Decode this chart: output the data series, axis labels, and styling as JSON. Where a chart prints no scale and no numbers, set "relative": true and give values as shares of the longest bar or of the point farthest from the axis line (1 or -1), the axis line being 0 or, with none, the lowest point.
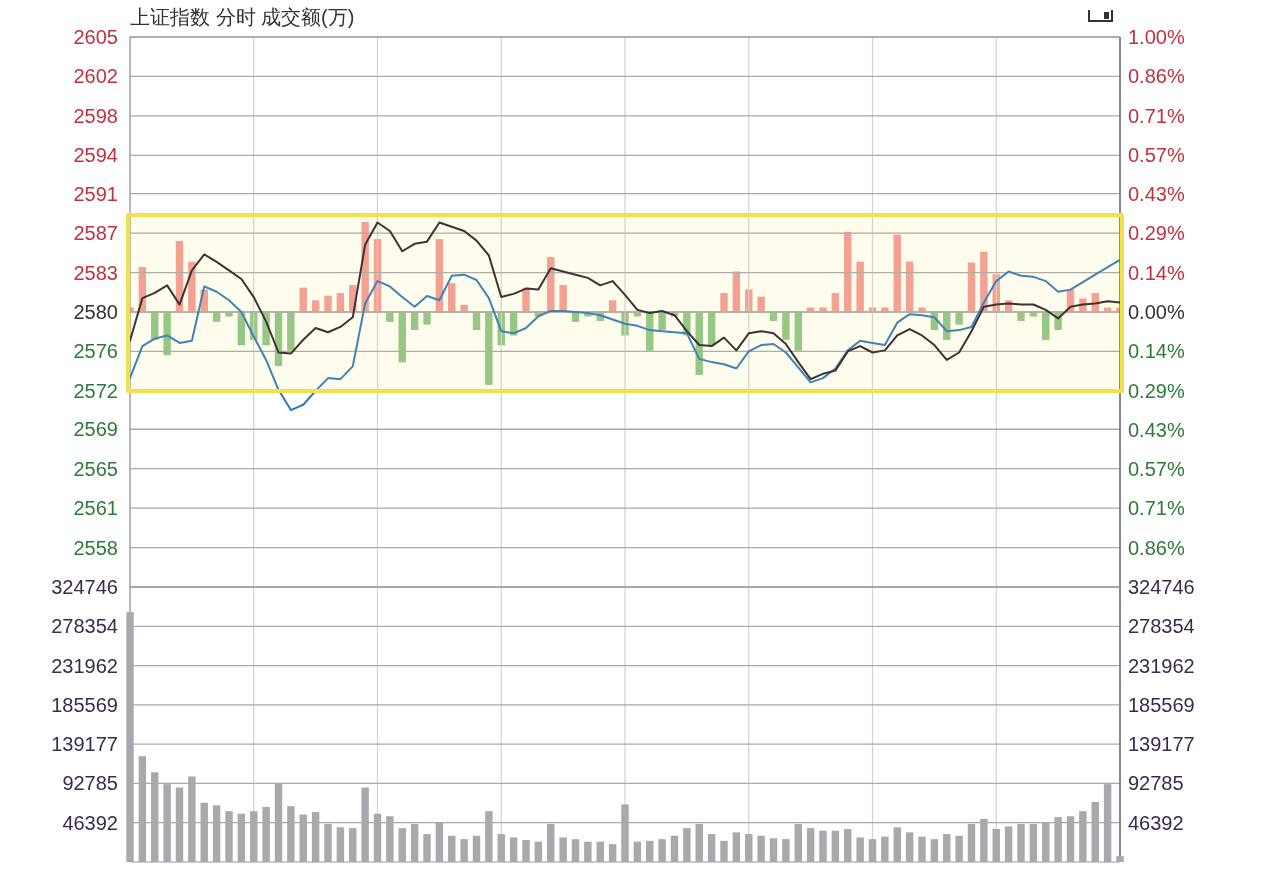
{
  "chart_data": [
    {
      "type": "line",
      "title": "上证指数  分时  成交额(万)",
      "categories": [
        null,
        null,
        null,
        null,
        null,
        null,
        null,
        null,
        null,
        null,
        null,
        null,
        null,
        null,
        null,
        null,
        null,
        null,
        null,
        null,
        null,
        null,
        null,
        null,
        null,
        null,
        null,
        null,
        null,
        null,
        null,
        null,
        null,
        null,
        null,
        null,
        null,
        null,
        null,
        null,
        null,
        null,
        null,
        null,
        null,
        null,
        null,
        null,
        null,
        null,
        null,
        null,
        null,
        null,
        null,
        null,
        null,
        null,
        null,
        null,
        null,
        null,
        null,
        null,
        null,
        null,
        null,
        null,
        null,
        null,
        null,
        null,
        null,
        null,
        null,
        null,
        null,
        null,
        null,
        null,
        null
      ],
      "ylim": [
        2553.9,
        2605.5
      ],
      "yticks": [
        {
          "value": 2605.5,
          "label": "2605"
        },
        {
          "value": 2601.8,
          "label": "2602"
        },
        {
          "value": 2598.1,
          "label": "2598"
        },
        {
          "value": 2594.4,
          "label": "2594"
        },
        {
          "value": 2590.8,
          "label": "2591"
        },
        {
          "value": 2587.1,
          "label": "2587"
        },
        {
          "value": 2583.4,
          "label": "2583"
        },
        {
          "value": 2579.7,
          "label": "2580"
        },
        {
          "value": 2576.0,
          "label": "2576"
        },
        {
          "value": 2572.3,
          "label": "2572"
        },
        {
          "value": 2568.7,
          "label": "2569"
        },
        {
          "value": 2565.0,
          "label": "2565"
        },
        {
          "value": 2561.3,
          "label": "2561"
        },
        {
          "value": 2557.6,
          "label": "2558"
        }
      ],
      "y2lim": [
        -1,
        1
      ],
      "y2ticks": [
        {
          "value": 1,
          "label": "1.00%"
        },
        {
          "value": 0.857,
          "label": "0.86%"
        },
        {
          "value": 0.714,
          "label": "0.71%"
        },
        {
          "value": 0.571,
          "label": "0.57%"
        },
        {
          "value": 0.429,
          "label": "0.43%"
        },
        {
          "value": 0.286,
          "label": "0.29%"
        },
        {
          "value": 0.143,
          "label": "0.14%"
        },
        {
          "value": 0,
          "label": "0.00%"
        },
        {
          "value": -0.143,
          "label": "0.14%"
        },
        {
          "value": -0.286,
          "label": "0.29%"
        },
        {
          "value": -0.429,
          "label": "0.43%"
        },
        {
          "value": -0.571,
          "label": "0.57%"
        },
        {
          "value": -0.714,
          "label": "0.71%"
        },
        {
          "value": -0.857,
          "label": "0.86%"
        }
      ],
      "tick_labels": "y",
      "grid": true,
      "bands": [
        {
          "axis": "y",
          "from": 2572.3,
          "to": 2588.8,
          "color": "#f3e14a"
        }
      ],
      "series": [
        {
          "color": "#2e78c0",
          "values": [
            2573.5,
            2576.5,
            2577.2,
            2577.5,
            2576.8,
            2577.0,
            2582.1,
            2581.6,
            2580.8,
            2579.7,
            2577.4,
            2575.2,
            2572.4,
            2570.5,
            2571.0,
            2572.3,
            2573.5,
            2573.4,
            2574.6,
            2580.5,
            2582.6,
            2582.1,
            2581.1,
            2580.2,
            2581.2,
            2580.8,
            2583.1,
            2583.2,
            2582.7,
            2581.0,
            2577.9,
            2577.7,
            2578.2,
            2579.3,
            2579.8,
            2579.8,
            2579.7,
            2579.6,
            2579.4,
            2579.0,
            2578.6,
            2578.4,
            2578.0,
            2577.9,
            2577.8,
            2577.7,
            2575.3,
            2575.0,
            2574.8,
            2574.4,
            2576.0,
            2576.6,
            2576.7,
            2575.9,
            2574.5,
            2573.1,
            2573.5,
            2574.4,
            2576.1,
            2577.0,
            2576.8,
            2576.6,
            2578.7,
            2579.5,
            2579.4,
            2579.2,
            2577.9,
            2578.0,
            2578.3,
            2580.6,
            2582.6,
            2583.5,
            2583.1,
            2583.0,
            2582.6,
            2581.6,
            2581.8,
            2582.5,
            2583.2,
            2583.9,
            2584.6
          ]
        },
        {
          "color": "#2a1f33",
          "values": [
            2577.0,
            2581.0,
            2581.5,
            2582.2,
            2580.4,
            2583.6,
            2585.1,
            2584.4,
            2583.6,
            2582.8,
            2581.1,
            2578.8,
            2575.9,
            2575.8,
            2577.1,
            2578.2,
            2577.8,
            2578.3,
            2579.2,
            2586.0,
            2588.1,
            2587.3,
            2585.4,
            2586.1,
            2586.3,
            2588.1,
            2587.7,
            2587.3,
            2586.4,
            2585.0,
            2581.1,
            2581.4,
            2581.9,
            2581.8,
            2583.8,
            2583.5,
            2583.2,
            2582.9,
            2582.2,
            2582.6,
            2581.3,
            2579.9,
            2579.6,
            2579.8,
            2579.4,
            2577.9,
            2576.6,
            2576.5,
            2577.3,
            2576.1,
            2577.7,
            2577.9,
            2577.7,
            2576.7,
            2575.0,
            2573.4,
            2573.9,
            2574.2,
            2576.0,
            2576.5,
            2575.9,
            2576.1,
            2577.5,
            2578.1,
            2577.5,
            2576.6,
            2575.2,
            2575.9,
            2577.9,
            2580.2,
            2580.4,
            2580.5,
            2580.4,
            2580.4,
            2579.9,
            2579.1,
            2580.2,
            2580.4,
            2580.5,
            2580.7,
            2580.6
          ]
        }
      ]
    },
    {
      "type": "bar",
      "relative": true,
      "tick_labels": false,
      "categories": [
        null,
        null,
        null,
        null,
        null,
        null,
        null,
        null,
        null,
        null,
        null,
        null,
        null,
        null,
        null,
        null,
        null,
        null,
        null,
        null,
        null,
        null,
        null,
        null,
        null,
        null,
        null,
        null,
        null,
        null,
        null,
        null,
        null,
        null,
        null,
        null,
        null,
        null,
        null,
        null,
        null,
        null,
        null,
        null,
        null,
        null,
        null,
        null,
        null,
        null,
        null,
        null,
        null,
        null,
        null,
        null,
        null,
        null,
        null,
        null,
        null,
        null,
        null,
        null,
        null,
        null,
        null,
        null,
        null,
        null,
        null,
        null,
        null,
        null,
        null,
        null,
        null,
        null,
        null,
        null,
        null
      ],
      "values": [
        0.05,
        0.5,
        -0.31,
        -0.48,
        0.79,
        0.56,
        0.25,
        -0.11,
        -0.05,
        -0.37,
        -0.31,
        -0.37,
        -0.6,
        -0.43,
        0.27,
        0.13,
        0.18,
        0.21,
        0.3,
        1,
        0.81,
        -0.11,
        -0.56,
        -0.2,
        -0.14,
        0.81,
        0.32,
        0.08,
        -0.2,
        -0.81,
        -0.37,
        -0.26,
        0.27,
        -0.05,
        0.61,
        0.3,
        -0.11,
        -0.05,
        -0.1,
        0.13,
        -0.26,
        -0.05,
        -0.43,
        -0.2,
        -0.05,
        -0.26,
        -0.7,
        -0.37,
        0.21,
        0.45,
        0.25,
        0.17,
        -0.1,
        -0.31,
        -0.43,
        0.05,
        0.05,
        0.21,
        0.89,
        0.56,
        0.05,
        0.05,
        0.86,
        0.56,
        0.05,
        -0.2,
        -0.31,
        -0.14,
        0.55,
        0.67,
        0.42,
        0.13,
        -0.1,
        -0.05,
        -0.31,
        -0.2,
        0.25,
        0.15,
        0.21,
        0.05,
        0.05
      ],
      "colors": [
        "#f29a9a",
        "#f29a9a",
        "#8cc48c",
        "#8cc48c",
        "#f29a9a",
        "#f29a9a",
        "#f29a9a",
        "#8cc48c",
        "#8cc48c",
        "#8cc48c",
        "#8cc48c",
        "#8cc48c",
        "#8cc48c",
        "#8cc48c",
        "#f29a9a",
        "#f29a9a",
        "#f29a9a",
        "#f29a9a",
        "#f29a9a",
        "#f29a9a",
        "#f29a9a",
        "#8cc48c",
        "#8cc48c",
        "#8cc48c",
        "#8cc48c",
        "#f29a9a",
        "#f29a9a",
        "#f29a9a",
        "#8cc48c",
        "#8cc48c",
        "#8cc48c",
        "#8cc48c",
        "#f29a9a",
        "#8cc48c",
        "#f29a9a",
        "#f29a9a",
        "#8cc48c",
        "#8cc48c",
        "#8cc48c",
        "#f29a9a",
        "#8cc48c",
        "#8cc48c",
        "#8cc48c",
        "#8cc48c",
        "#8cc48c",
        "#8cc48c",
        "#8cc48c",
        "#8cc48c",
        "#f29a9a",
        "#f29a9a",
        "#f29a9a",
        "#f29a9a",
        "#8cc48c",
        "#8cc48c",
        "#8cc48c",
        "#f29a9a",
        "#f29a9a",
        "#f29a9a",
        "#f29a9a",
        "#f29a9a",
        "#f29a9a",
        "#f29a9a",
        "#f29a9a",
        "#f29a9a",
        "#f29a9a",
        "#8cc48c",
        "#8cc48c",
        "#8cc48c",
        "#f29a9a",
        "#f29a9a",
        "#f29a9a",
        "#f29a9a",
        "#8cc48c",
        "#8cc48c",
        "#8cc48c",
        "#8cc48c",
        "#f29a9a",
        "#f29a9a",
        "#f29a9a",
        "#f29a9a",
        "#f29a9a"
      ]
    },
    {
      "type": "bar",
      "color": "#a9a9ad",
      "categories": [
        null,
        null,
        null,
        null,
        null,
        null,
        null,
        null,
        null,
        null,
        null,
        null,
        null,
        null,
        null,
        null,
        null,
        null,
        null,
        null,
        null,
        null,
        null,
        null,
        null,
        null,
        null,
        null,
        null,
        null,
        null,
        null,
        null,
        null,
        null,
        null,
        null,
        null,
        null,
        null,
        null,
        null,
        null,
        null,
        null,
        null,
        null,
        null,
        null,
        null,
        null,
        null,
        null,
        null,
        null,
        null,
        null,
        null,
        null,
        null,
        null,
        null,
        null,
        null,
        null,
        null,
        null,
        null,
        null,
        null,
        null,
        null,
        null,
        null,
        null,
        null,
        null,
        null,
        null,
        null,
        null
      ],
      "ylim": [
        0,
        324746
      ],
      "yticks": [
        46392,
        92785,
        139177,
        185569,
        231962,
        278354,
        324746
      ],
      "y2lim": [
        0,
        324746
      ],
      "y2ticks": [
        46392,
        92785,
        139177,
        185569,
        231962,
        278354,
        324746
      ],
      "tick_labels": "y",
      "grid": true,
      "values": [
        295000,
        125000,
        106000,
        92000,
        88000,
        101000,
        70000,
        67000,
        60000,
        57000,
        60000,
        65000,
        93000,
        66000,
        56000,
        59000,
        45000,
        41000,
        40000,
        88000,
        57000,
        54000,
        40000,
        45000,
        33000,
        47000,
        31000,
        27000,
        31000,
        60000,
        33000,
        29000,
        26000,
        24000,
        45000,
        29000,
        27000,
        24000,
        24000,
        21000,
        68000,
        24000,
        25000,
        27000,
        31000,
        40000,
        45000,
        33000,
        25000,
        35000,
        33000,
        31000,
        28000,
        27000,
        45000,
        40000,
        37000,
        37000,
        39000,
        29000,
        27000,
        30000,
        41000,
        35000,
        30000,
        27000,
        33000,
        31000,
        45000,
        51000,
        39000,
        42000,
        45000,
        45000,
        47000,
        53000,
        54000,
        60000,
        71000,
        92000,
        7000
      ]
    }
  ]
}
